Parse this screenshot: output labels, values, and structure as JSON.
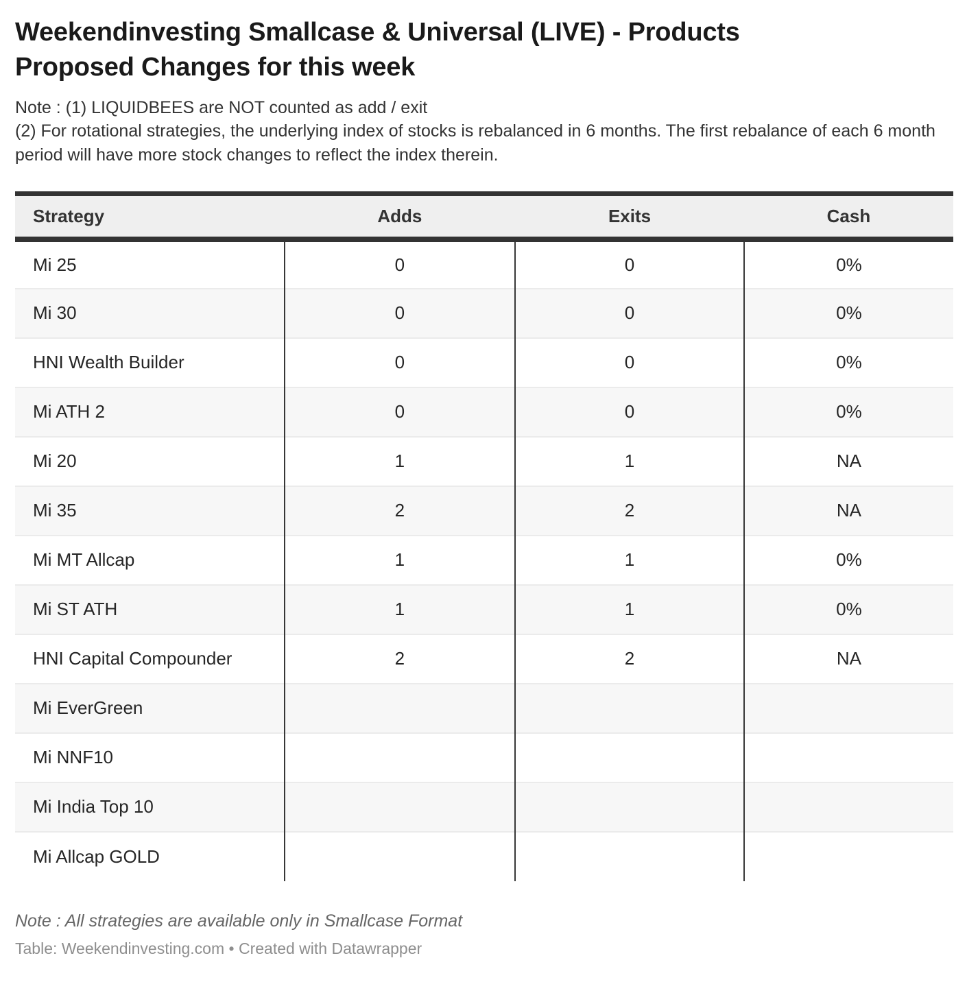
{
  "chart_data": {
    "type": "table",
    "title": "Weekendinvesting Smallcase & Universal (LIVE) - Products Proposed Changes for this week",
    "notes": [
      "Note : (1) LIQUIDBEES are NOT counted as add / exit",
      "(2) For rotational strategies, the underlying index of stocks is rebalanced in 6 months. The first rebalance of each 6 month period will have more stock changes to reflect the index therein."
    ],
    "columns": [
      "Strategy",
      "Adds",
      "Exits",
      "Cash"
    ],
    "column_keys": [
      "strategy",
      "adds",
      "exits",
      "cash"
    ],
    "column_aligns": [
      "left",
      "center",
      "center",
      "center"
    ],
    "rows": [
      [
        "Mi 25",
        "0",
        "0",
        "0%"
      ],
      [
        "Mi 30",
        "0",
        "0",
        "0%"
      ],
      [
        "HNI Wealth Builder",
        "0",
        "0",
        "0%"
      ],
      [
        "Mi ATH 2",
        "0",
        "0",
        "0%"
      ],
      [
        "Mi 20",
        "1",
        "1",
        "NA"
      ],
      [
        "Mi 35",
        "2",
        "2",
        "NA"
      ],
      [
        "Mi MT Allcap",
        "1",
        "1",
        "0%"
      ],
      [
        "Mi ST ATH",
        "1",
        "1",
        "0%"
      ],
      [
        "HNI Capital Compounder",
        "2",
        "2",
        "NA"
      ],
      [
        "Mi EverGreen",
        "",
        "",
        ""
      ],
      [
        "Mi NNF10",
        "",
        "",
        ""
      ],
      [
        "Mi India Top 10",
        "",
        "",
        ""
      ],
      [
        "Mi Allcap GOLD",
        "",
        "",
        ""
      ]
    ],
    "footer_note": "Note : All strategies are available only in Smallcase Format",
    "source": "Table: Weekendinvesting.com • Created with Datawrapper",
    "layout_hints": {
      "grid": "vertical dark separators between columns, light horizontal row dividers",
      "striping": "alternating white and light gray rows",
      "header": "gray header band with heavy dark rule above and below"
    }
  },
  "colors": {
    "border_dark": "#333333",
    "header_bg": "#efefef",
    "row_alt_bg": "#f7f7f7",
    "row_divider": "#ebebeb",
    "title_text": "#1a1a1a",
    "body_text": "#262626",
    "note_text": "#333333",
    "footer_note_text": "#666666",
    "source_text": "#8e8e8e"
  }
}
